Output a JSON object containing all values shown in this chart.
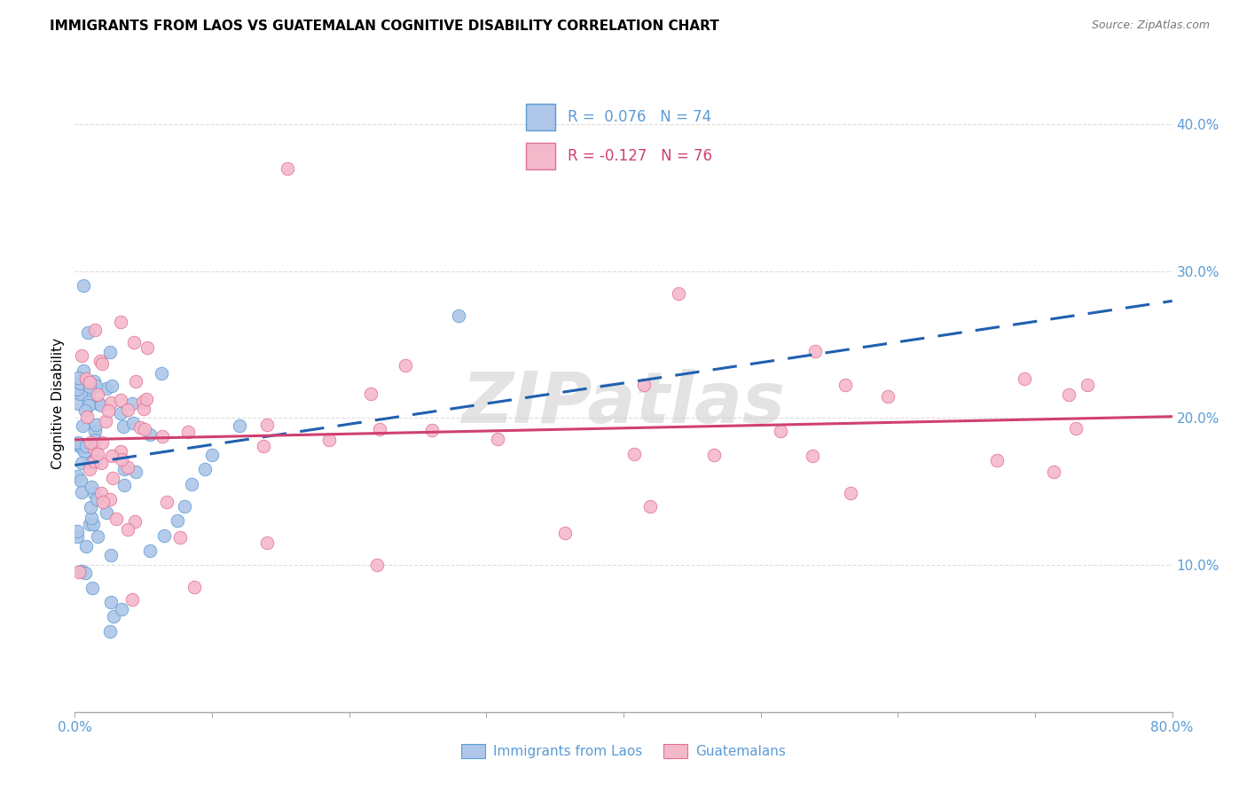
{
  "title": "IMMIGRANTS FROM LAOS VS GUATEMALAN COGNITIVE DISABILITY CORRELATION CHART",
  "source": "Source: ZipAtlas.com",
  "ylabel": "Cognitive Disability",
  "color_blue": "#aec6e8",
  "color_pink": "#f5b8cb",
  "color_blue_edge": "#5b9bd5",
  "color_pink_edge": "#e07090",
  "color_trendline_blue": "#2060b0",
  "color_trendline_pink": "#d04070",
  "watermark": "ZIPatlas",
  "blue_r": 0.076,
  "pink_r": -0.127,
  "blue_n": 74,
  "pink_n": 76,
  "xlim": [
    0.0,
    0.8
  ],
  "ylim": [
    0.0,
    0.42
  ],
  "yticks": [
    0.0,
    0.1,
    0.2,
    0.3,
    0.4
  ],
  "ytick_labels": [
    "",
    "10.0%",
    "20.0%",
    "30.0%",
    "40.0%"
  ],
  "xtick_labels_show": [
    "0.0%",
    "80.0%"
  ],
  "grid_color": "#dddddd",
  "title_fontsize": 11,
  "source_fontsize": 9,
  "axis_label_color": "#5b9bd5",
  "legend_box_color": "#cccccc"
}
